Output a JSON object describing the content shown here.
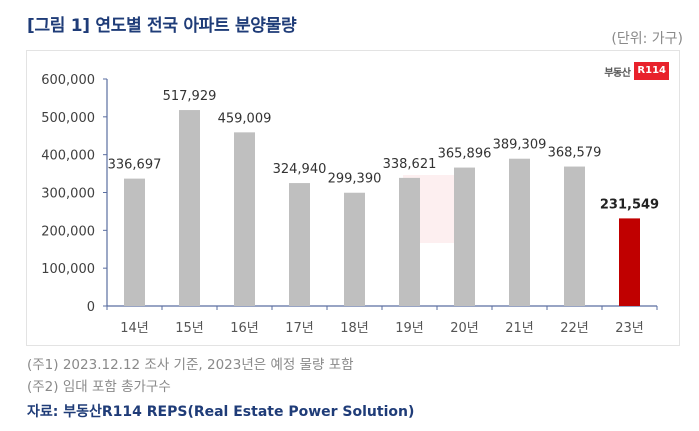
{
  "header": {
    "title": "[그림 1] 연도별 전국 아파트 분양물량",
    "unit": "(단위: 가구)"
  },
  "logo": {
    "korean": "부동산",
    "badge": "R114"
  },
  "footer": {
    "note1": "(주1) 2023.12.12 조사 기준, 2023년은 예정 물량 포함",
    "note2": "(주2) 임대 포함 총가구수",
    "source": "자료: 부동산R114 REPS(Real Estate Power Solution)"
  },
  "colors": {
    "bar": "#bfbfbf",
    "highlight": "#c00000",
    "axis": "#5a6ea0",
    "title": "#1f3c78"
  },
  "chart_data": {
    "type": "bar",
    "title": "[그림 1] 연도별 전국 아파트 분양물량",
    "xlabel": "",
    "ylabel": "(단위: 가구)",
    "categories": [
      "14년",
      "15년",
      "16년",
      "17년",
      "18년",
      "19년",
      "20년",
      "21년",
      "22년",
      "23년"
    ],
    "values": [
      336697,
      517929,
      459009,
      324940,
      299390,
      338621,
      365896,
      389309,
      368579,
      231549
    ],
    "labels": [
      "336,697",
      "517,929",
      "459,009",
      "324,940",
      "299,390",
      "338,621",
      "365,896",
      "389,309",
      "368,579",
      "231,549"
    ],
    "highlight_index": 9,
    "ylim": [
      0,
      600000
    ],
    "yticks": [
      0,
      100000,
      200000,
      300000,
      400000,
      500000,
      600000
    ],
    "ytick_labels": [
      "0",
      "100,000",
      "200,000",
      "300,000",
      "400,000",
      "500,000",
      "600,000"
    ],
    "grid": false,
    "legend": "none"
  }
}
